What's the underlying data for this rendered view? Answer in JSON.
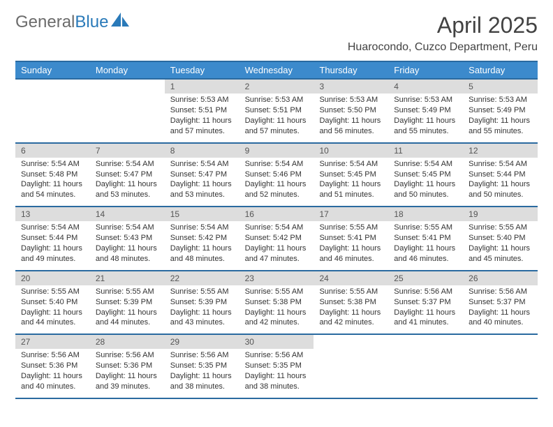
{
  "brand": {
    "part1": "General",
    "part2": "Blue"
  },
  "title": "April 2025",
  "location": "Huarocondo, Cuzco Department, Peru",
  "colors": {
    "header_bg": "#3c8acc",
    "header_border": "#2a6aa0",
    "daynum_bg": "#dddddd",
    "text": "#333333",
    "brand_gray": "#6b6b6b",
    "brand_blue": "#2a7ab9"
  },
  "day_names": [
    "Sunday",
    "Monday",
    "Tuesday",
    "Wednesday",
    "Thursday",
    "Friday",
    "Saturday"
  ],
  "weeks": [
    [
      {
        "n": "",
        "sr": "",
        "ss": "",
        "dl": ""
      },
      {
        "n": "",
        "sr": "",
        "ss": "",
        "dl": ""
      },
      {
        "n": "1",
        "sr": "Sunrise: 5:53 AM",
        "ss": "Sunset: 5:51 PM",
        "dl": "Daylight: 11 hours and 57 minutes."
      },
      {
        "n": "2",
        "sr": "Sunrise: 5:53 AM",
        "ss": "Sunset: 5:51 PM",
        "dl": "Daylight: 11 hours and 57 minutes."
      },
      {
        "n": "3",
        "sr": "Sunrise: 5:53 AM",
        "ss": "Sunset: 5:50 PM",
        "dl": "Daylight: 11 hours and 56 minutes."
      },
      {
        "n": "4",
        "sr": "Sunrise: 5:53 AM",
        "ss": "Sunset: 5:49 PM",
        "dl": "Daylight: 11 hours and 55 minutes."
      },
      {
        "n": "5",
        "sr": "Sunrise: 5:53 AM",
        "ss": "Sunset: 5:49 PM",
        "dl": "Daylight: 11 hours and 55 minutes."
      }
    ],
    [
      {
        "n": "6",
        "sr": "Sunrise: 5:54 AM",
        "ss": "Sunset: 5:48 PM",
        "dl": "Daylight: 11 hours and 54 minutes."
      },
      {
        "n": "7",
        "sr": "Sunrise: 5:54 AM",
        "ss": "Sunset: 5:47 PM",
        "dl": "Daylight: 11 hours and 53 minutes."
      },
      {
        "n": "8",
        "sr": "Sunrise: 5:54 AM",
        "ss": "Sunset: 5:47 PM",
        "dl": "Daylight: 11 hours and 53 minutes."
      },
      {
        "n": "9",
        "sr": "Sunrise: 5:54 AM",
        "ss": "Sunset: 5:46 PM",
        "dl": "Daylight: 11 hours and 52 minutes."
      },
      {
        "n": "10",
        "sr": "Sunrise: 5:54 AM",
        "ss": "Sunset: 5:45 PM",
        "dl": "Daylight: 11 hours and 51 minutes."
      },
      {
        "n": "11",
        "sr": "Sunrise: 5:54 AM",
        "ss": "Sunset: 5:45 PM",
        "dl": "Daylight: 11 hours and 50 minutes."
      },
      {
        "n": "12",
        "sr": "Sunrise: 5:54 AM",
        "ss": "Sunset: 5:44 PM",
        "dl": "Daylight: 11 hours and 50 minutes."
      }
    ],
    [
      {
        "n": "13",
        "sr": "Sunrise: 5:54 AM",
        "ss": "Sunset: 5:44 PM",
        "dl": "Daylight: 11 hours and 49 minutes."
      },
      {
        "n": "14",
        "sr": "Sunrise: 5:54 AM",
        "ss": "Sunset: 5:43 PM",
        "dl": "Daylight: 11 hours and 48 minutes."
      },
      {
        "n": "15",
        "sr": "Sunrise: 5:54 AM",
        "ss": "Sunset: 5:42 PM",
        "dl": "Daylight: 11 hours and 48 minutes."
      },
      {
        "n": "16",
        "sr": "Sunrise: 5:54 AM",
        "ss": "Sunset: 5:42 PM",
        "dl": "Daylight: 11 hours and 47 minutes."
      },
      {
        "n": "17",
        "sr": "Sunrise: 5:55 AM",
        "ss": "Sunset: 5:41 PM",
        "dl": "Daylight: 11 hours and 46 minutes."
      },
      {
        "n": "18",
        "sr": "Sunrise: 5:55 AM",
        "ss": "Sunset: 5:41 PM",
        "dl": "Daylight: 11 hours and 46 minutes."
      },
      {
        "n": "19",
        "sr": "Sunrise: 5:55 AM",
        "ss": "Sunset: 5:40 PM",
        "dl": "Daylight: 11 hours and 45 minutes."
      }
    ],
    [
      {
        "n": "20",
        "sr": "Sunrise: 5:55 AM",
        "ss": "Sunset: 5:40 PM",
        "dl": "Daylight: 11 hours and 44 minutes."
      },
      {
        "n": "21",
        "sr": "Sunrise: 5:55 AM",
        "ss": "Sunset: 5:39 PM",
        "dl": "Daylight: 11 hours and 44 minutes."
      },
      {
        "n": "22",
        "sr": "Sunrise: 5:55 AM",
        "ss": "Sunset: 5:39 PM",
        "dl": "Daylight: 11 hours and 43 minutes."
      },
      {
        "n": "23",
        "sr": "Sunrise: 5:55 AM",
        "ss": "Sunset: 5:38 PM",
        "dl": "Daylight: 11 hours and 42 minutes."
      },
      {
        "n": "24",
        "sr": "Sunrise: 5:55 AM",
        "ss": "Sunset: 5:38 PM",
        "dl": "Daylight: 11 hours and 42 minutes."
      },
      {
        "n": "25",
        "sr": "Sunrise: 5:56 AM",
        "ss": "Sunset: 5:37 PM",
        "dl": "Daylight: 11 hours and 41 minutes."
      },
      {
        "n": "26",
        "sr": "Sunrise: 5:56 AM",
        "ss": "Sunset: 5:37 PM",
        "dl": "Daylight: 11 hours and 40 minutes."
      }
    ],
    [
      {
        "n": "27",
        "sr": "Sunrise: 5:56 AM",
        "ss": "Sunset: 5:36 PM",
        "dl": "Daylight: 11 hours and 40 minutes."
      },
      {
        "n": "28",
        "sr": "Sunrise: 5:56 AM",
        "ss": "Sunset: 5:36 PM",
        "dl": "Daylight: 11 hours and 39 minutes."
      },
      {
        "n": "29",
        "sr": "Sunrise: 5:56 AM",
        "ss": "Sunset: 5:35 PM",
        "dl": "Daylight: 11 hours and 38 minutes."
      },
      {
        "n": "30",
        "sr": "Sunrise: 5:56 AM",
        "ss": "Sunset: 5:35 PM",
        "dl": "Daylight: 11 hours and 38 minutes."
      },
      {
        "n": "",
        "sr": "",
        "ss": "",
        "dl": ""
      },
      {
        "n": "",
        "sr": "",
        "ss": "",
        "dl": ""
      },
      {
        "n": "",
        "sr": "",
        "ss": "",
        "dl": ""
      }
    ]
  ]
}
